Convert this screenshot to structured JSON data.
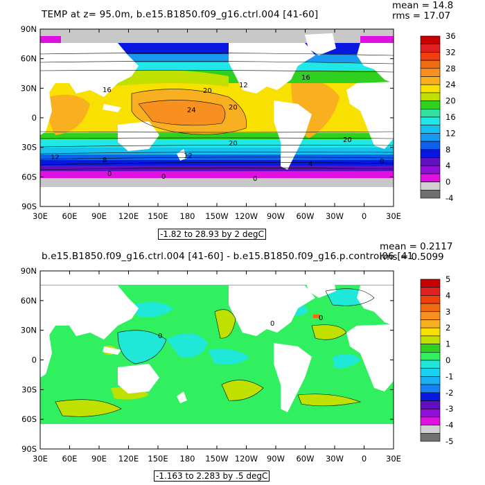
{
  "panel1": {
    "title": "TEMP at z=  95.0m, b.e15.B1850.f09_g16.ctrl.004 [41-60]",
    "mean": "mean = 14.8",
    "rms": "rms = 17.07",
    "subtitle": "-1.82 to 28.93 by 2 degC",
    "colorbar_labels": [
      "36",
      "32",
      "28",
      "24",
      "20",
      "16",
      "12",
      "8",
      "4",
      "0",
      "-4"
    ],
    "colorbar_colors": [
      "#c80000",
      "#e02020",
      "#f04010",
      "#f06a10",
      "#f89020",
      "#f8b020",
      "#f8e000",
      "#c0e000",
      "#30d020",
      "#30e0a0",
      "#20e8e8",
      "#18c0f0",
      "#1898f0",
      "#1060f0",
      "#0818e0",
      "#6010c0",
      "#9010d8",
      "#e010e0",
      "#d0d0d0",
      "#707070"
    ],
    "contour_labels": [
      "20",
      "24",
      "20",
      "20",
      "16",
      "12",
      "8",
      "12",
      "0",
      "0",
      "0",
      "4",
      "0",
      "16",
      "20",
      "12"
    ]
  },
  "panel2": {
    "title": "b.e15.B1850.f09_g16.ctrl.004 [41-60] - b.e15.B1850.f09_g16.p.control06 [41",
    "mean": "mean = 0.2117",
    "rms": "rms = 0.5099",
    "subtitle": "-1.163 to 2.283 by .5 degC",
    "colorbar_labels": [
      "5",
      "4",
      "3",
      "2",
      "1",
      "0",
      "-1",
      "-2",
      "-3",
      "-4",
      "-5"
    ],
    "colorbar_colors": [
      "#c80000",
      "#e02020",
      "#f04010",
      "#f06a10",
      "#f89020",
      "#f8b020",
      "#f8e000",
      "#c0e000",
      "#30d020",
      "#30f060",
      "#20e8d8",
      "#18d0f0",
      "#18b0f0",
      "#1880f0",
      "#0818e0",
      "#6010c0",
      "#9010d8",
      "#e010e0",
      "#d0d0d0",
      "#707070"
    ],
    "contour_labels": [
      "0",
      "0",
      "0"
    ]
  },
  "axes": {
    "lat_labels": [
      "90N",
      "60N",
      "30N",
      "0",
      "30S",
      "60S",
      "90S"
    ],
    "lon_labels": [
      "30E",
      "60E",
      "90E",
      "120E",
      "150E",
      "180",
      "150W",
      "120W",
      "90W",
      "60W",
      "30W",
      "0",
      "30E"
    ]
  }
}
